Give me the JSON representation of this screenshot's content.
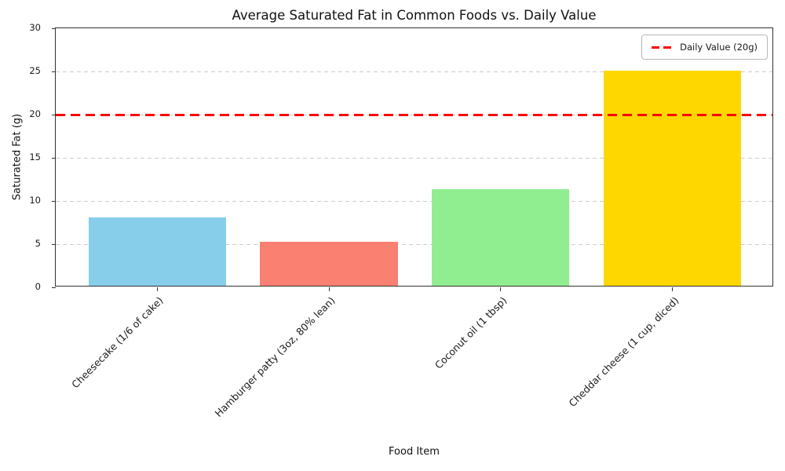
{
  "chart_data": {
    "type": "bar",
    "title": "Average Saturated Fat in Common Foods vs. Daily Value",
    "xlabel": "Food Item",
    "ylabel": "Saturated Fat (g)",
    "categories": [
      "Cheesecake (1/6 of cake)",
      "Hamburger patty (3oz, 80% lean)",
      "Coconut oil (1 tbsp)",
      "Cheddar cheese (1 cup, diced)"
    ],
    "values": [
      7.9,
      5.1,
      11.2,
      24.9
    ],
    "bar_colors": [
      "#87CEEB",
      "#FA8072",
      "#90EE90",
      "#FFD700"
    ],
    "ylim": [
      0,
      30
    ],
    "yticks": [
      0,
      5,
      10,
      15,
      20,
      25,
      30
    ],
    "grid": "horizontal-dashed",
    "legend_position": "upper right",
    "reference_line": {
      "value": 20,
      "color": "#FF0000",
      "style": "dashed",
      "label": "Daily Value (20g)"
    }
  }
}
